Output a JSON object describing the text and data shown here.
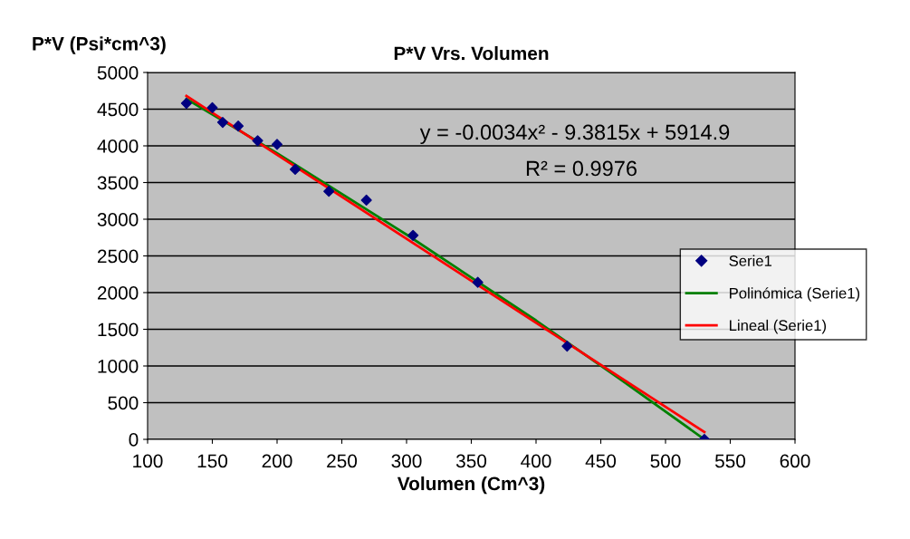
{
  "chart_data": {
    "type": "scatter",
    "title": "P*V Vrs. Volumen",
    "xlabel": "Volumen (Cm^3)",
    "ylabel": "P*V (Psi*cm^3)",
    "annotations": [
      "y = -0.0034x² - 9.3815x + 5914.9",
      "R² = 0.9976"
    ],
    "xlim": [
      100,
      600
    ],
    "xticks": [
      100,
      150,
      200,
      250,
      300,
      350,
      400,
      450,
      500,
      550,
      600
    ],
    "ylim": [
      0,
      5000
    ],
    "yticks": [
      0,
      500,
      1000,
      1500,
      2000,
      2500,
      3000,
      3500,
      4000,
      4500,
      5000
    ],
    "grid": "y",
    "legend": "right",
    "marker": "diamond",
    "series": [
      {
        "name": "Serie1",
        "color": "#000080",
        "x": [
          130,
          150,
          158,
          170,
          185,
          200,
          214,
          240,
          269,
          305,
          355,
          424,
          530
        ],
        "values": [
          4580,
          4520,
          4320,
          4270,
          4070,
          4020,
          3680,
          3380,
          3260,
          2780,
          2140,
          1270,
          0
        ]
      },
      {
        "name": "Polinómica (Serie1)",
        "type": "line",
        "color": "#008000",
        "marker": "none",
        "x": [
          130,
          200,
          300,
          400,
          465,
          530
        ],
        "values": [
          4640,
          3900,
          2790,
          1620,
          820,
          0
        ]
      },
      {
        "name": "Lineal (Serie1)",
        "type": "line",
        "color": "#ff0000",
        "marker": "none",
        "x": [
          130,
          530
        ],
        "values": [
          4680,
          100
        ]
      }
    ]
  }
}
